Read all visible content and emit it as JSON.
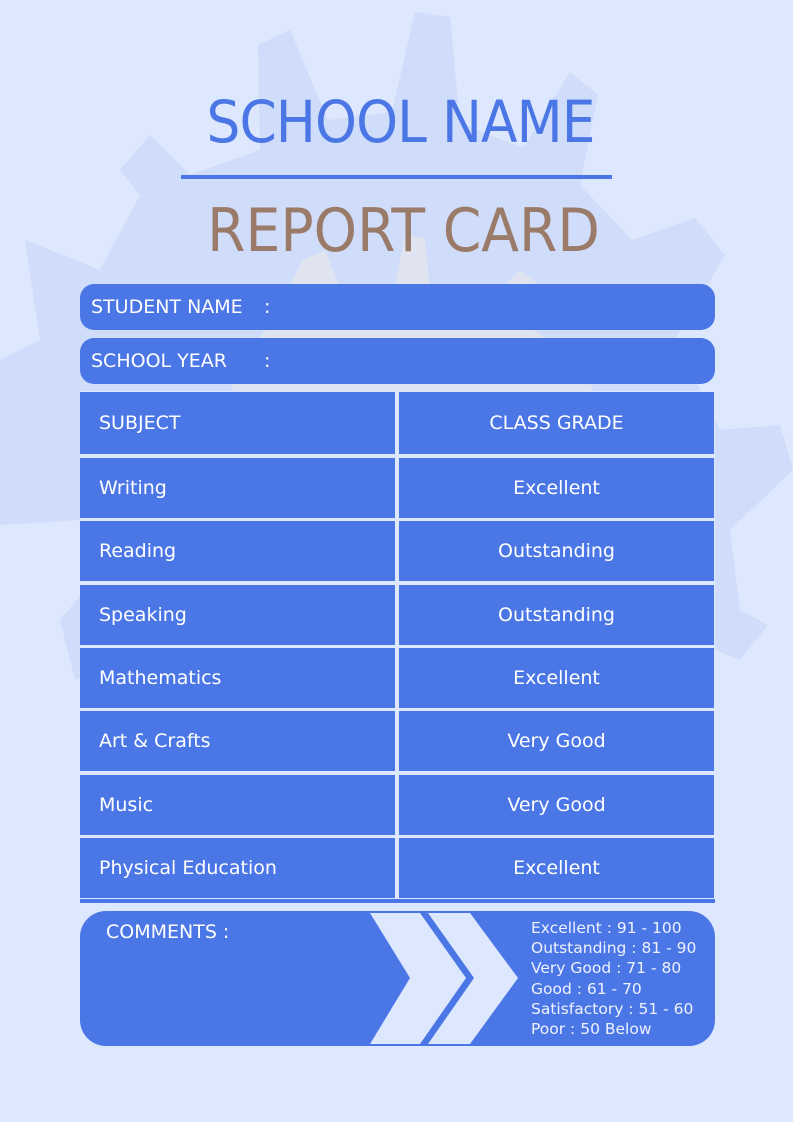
{
  "header": {
    "school_name": "SCHOOL NAME",
    "title": "REPORT CARD"
  },
  "fields": {
    "student_name_label": "STUDENT NAME",
    "school_year_label": "SCHOOL YEAR",
    "separator": ":"
  },
  "table": {
    "headers": [
      "SUBJECT",
      "CLASS GRADE"
    ],
    "rows": [
      {
        "subject": "Writing",
        "grade": "Excellent"
      },
      {
        "subject": "Reading",
        "grade": "Outstanding"
      },
      {
        "subject": "Speaking",
        "grade": "Outstanding"
      },
      {
        "subject": "Mathematics",
        "grade": "Excellent"
      },
      {
        "subject": "Art & Crafts",
        "grade": "Very Good"
      },
      {
        "subject": "Music",
        "grade": "Very Good"
      },
      {
        "subject": "Physical Education",
        "grade": "Excellent"
      }
    ]
  },
  "comments": {
    "label": "COMMENTS :",
    "scale": [
      "Excellent : 91 - 100",
      "Outstanding : 81 - 90",
      "Very Good : 71 - 80",
      "Good : 61 - 70",
      "Satisfactory : 51 - 60",
      "Poor : 50 Below"
    ]
  },
  "colors": {
    "background": "#dde8fe",
    "accent": "#4b76e6",
    "title_brown": "#9a7a68",
    "gear": "#cfdcfa"
  }
}
